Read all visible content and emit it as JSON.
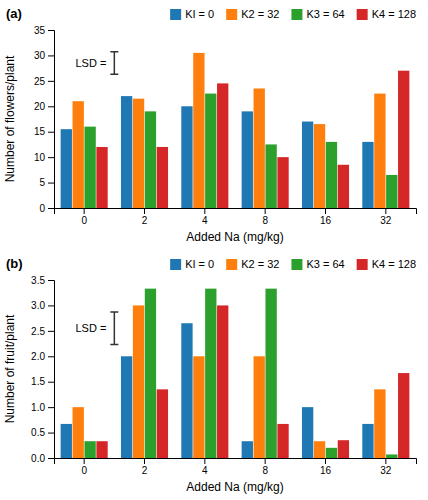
{
  "chart_data": [
    {
      "type": "bar",
      "title": "(a)",
      "categories": [
        "0",
        "2",
        "4",
        "8",
        "16",
        "32"
      ],
      "series": [
        {
          "name": "KI = 0",
          "values": [
            15.5,
            22.0,
            20.0,
            19.0,
            17.0,
            13.0
          ]
        },
        {
          "name": "K2 = 32",
          "values": [
            21.0,
            21.5,
            30.5,
            23.5,
            16.5,
            22.5
          ]
        },
        {
          "name": "K3 = 64",
          "values": [
            16.0,
            19.0,
            22.5,
            12.5,
            13.0,
            6.5
          ]
        },
        {
          "name": "K4 = 128",
          "values": [
            12.0,
            12.0,
            24.5,
            10.0,
            8.5,
            27.0
          ]
        }
      ],
      "x_label": "Added Na (mg/kg)",
      "y_label": "Number of flowers/plant",
      "ylim": [
        0,
        35
      ],
      "yticks": [
        0,
        5,
        10,
        15,
        20,
        25,
        30,
        35
      ],
      "grid": false,
      "legend": "top",
      "lsd": {
        "text": "LSD =",
        "value": 28.5,
        "error": 2.2
      }
    },
    {
      "type": "bar",
      "title": "(b)",
      "categories": [
        "0",
        "2",
        "4",
        "8",
        "16",
        "32"
      ],
      "series": [
        {
          "name": "KI = 0",
          "values": [
            0.67,
            2.0,
            2.65,
            0.33,
            1.0,
            0.67
          ]
        },
        {
          "name": "K2 = 32",
          "values": [
            1.0,
            3.0,
            2.0,
            2.0,
            0.33,
            1.35
          ]
        },
        {
          "name": "K3 = 64",
          "values": [
            0.33,
            3.33,
            3.33,
            3.33,
            0.2,
            0.07
          ]
        },
        {
          "name": "K4 = 128",
          "values": [
            0.33,
            1.35,
            3.0,
            0.67,
            0.35,
            1.67
          ]
        }
      ],
      "x_label": "Added Na (mg/kg)",
      "y_label": "Number of fruit/plant",
      "ylim": [
        0,
        3.5
      ],
      "yticks": [
        {
          "value": 0,
          "label": "0.0"
        },
        0.5,
        {
          "value": 1.0,
          "label": "1.0"
        },
        1.5,
        {
          "value": 2.0,
          "label": "2.0"
        },
        2.5,
        {
          "value": 3.0,
          "label": "3.0"
        },
        3.5
      ],
      "grid": false,
      "legend": "top",
      "lsd": {
        "text": "LSD =",
        "value": 2.55,
        "error": 0.32
      }
    }
  ]
}
